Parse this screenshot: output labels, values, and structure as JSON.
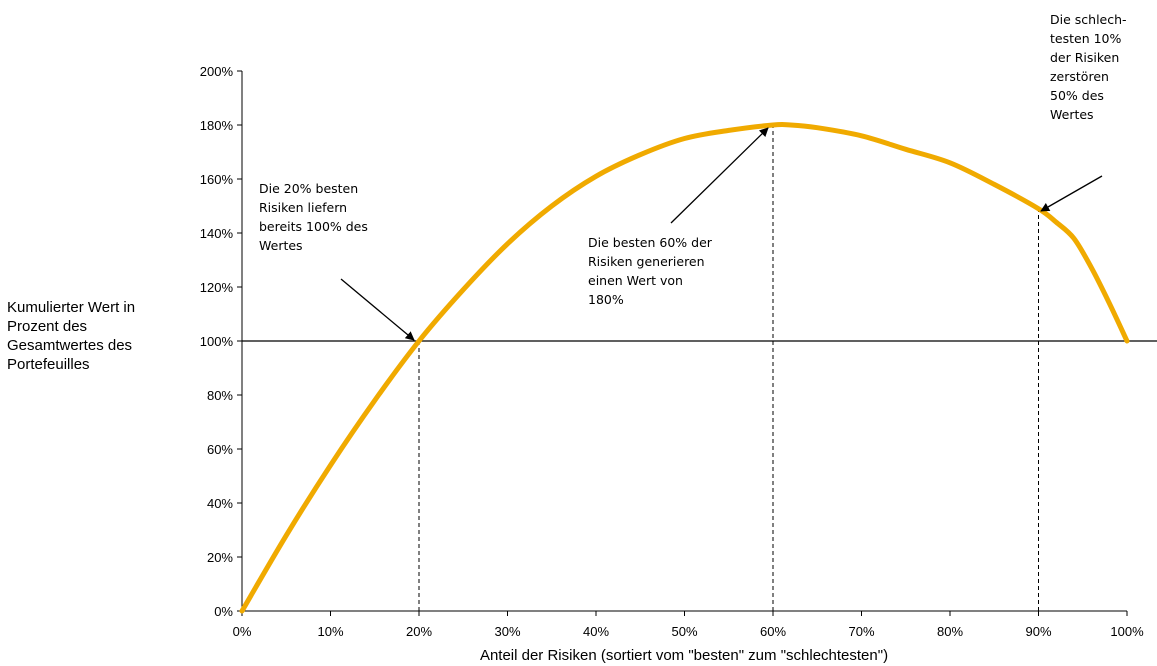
{
  "chart_data": {
    "type": "line",
    "xlabel": "Anteil der Risiken (sortiert vom \"besten\" zum \"schlechtesten\")",
    "ylabel_lines": [
      "Kumulierter Wert in",
      "Prozent des",
      "Gesamtwertes des",
      "Portefeuilles"
    ],
    "xlim": [
      0,
      100
    ],
    "ylim": [
      0,
      200
    ],
    "x_ticks": [
      0,
      10,
      20,
      30,
      40,
      50,
      60,
      70,
      80,
      90,
      100
    ],
    "y_ticks": [
      0,
      20,
      40,
      60,
      80,
      100,
      120,
      140,
      160,
      180,
      200
    ],
    "tick_suffix": "%",
    "reference_line_y": 100,
    "marker_lines_x": [
      20,
      60,
      90
    ],
    "line_color": "#f0aa00",
    "series": [
      {
        "x": [
          0,
          5,
          10,
          15,
          20,
          25,
          30,
          35,
          40,
          45,
          50,
          55,
          60,
          62,
          65,
          70,
          75,
          80,
          85,
          90,
          92,
          94,
          96,
          98,
          100
        ],
        "y": [
          0,
          28,
          54,
          78,
          100,
          119,
          136,
          150,
          161,
          169,
          175,
          178,
          180,
          180,
          179,
          176,
          171,
          166,
          158,
          149,
          144,
          138,
          127,
          114,
          100
        ]
      }
    ]
  },
  "annotations": [
    {
      "lines": [
        "Die 20% besten",
        "Risiken liefern",
        "bereits 100% des",
        "Wertes"
      ]
    },
    {
      "lines": [
        "Die besten 60% der",
        "Risiken generieren",
        "einen Wert von",
        "180%"
      ]
    },
    {
      "lines": [
        "Die schlech-",
        "testen 10%",
        "der Risiken",
        "zerstören",
        "50% des",
        "Wertes"
      ]
    }
  ]
}
